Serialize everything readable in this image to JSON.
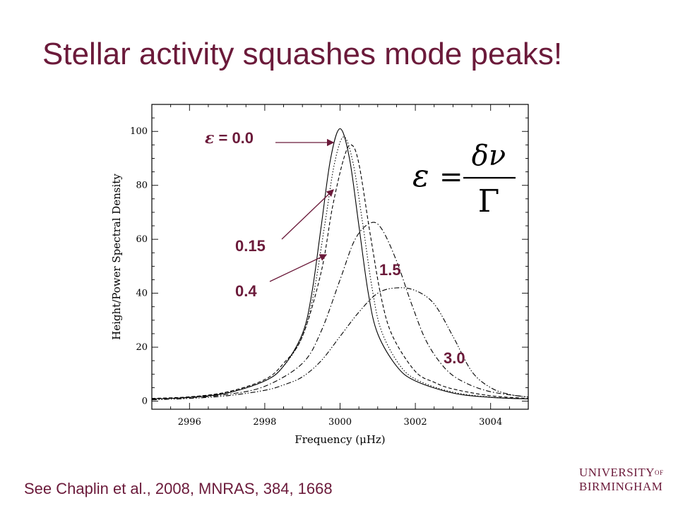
{
  "slide": {
    "title": "Stellar activity squashes mode peaks!",
    "citation": "See Chaplin et al., 2008, MNRAS, 384, 1668",
    "logo_lines": [
      "UNIVERSITY",
      "OF",
      "BIRMINGHAM"
    ],
    "annotations": {
      "eps_symbol": "ε",
      "eps_label": " = 0.0",
      "a015": "0.15",
      "a04": "0.4",
      "a15": "1.5",
      "a30": "3.0"
    },
    "formula": {
      "lhs": "ε",
      "eq": "=",
      "num": "δν",
      "den": "Γ"
    },
    "colors": {
      "accent": "#6b1a3a",
      "plot": "#000000"
    }
  },
  "chart_data": {
    "type": "line",
    "xlabel": "Frequency (μHz)",
    "ylabel": "Height/Power Spectral Density",
    "xlim": [
      2995,
      3005
    ],
    "ylim": [
      -3,
      110
    ],
    "xticks": [
      2996,
      2998,
      3000,
      3002,
      3004
    ],
    "yticks": [
      0,
      20,
      40,
      60,
      80,
      100
    ],
    "grid": false,
    "series": [
      {
        "name": "0.0",
        "style": "solid",
        "x": [
          2995,
          2996,
          2997,
          2998,
          2998.5,
          2999,
          2999.25,
          2999.5,
          2999.75,
          3000,
          3000.25,
          3000.5,
          3000.75,
          3001,
          3001.5,
          3002,
          3003,
          3004,
          3005
        ],
        "y": [
          0.8,
          1.4,
          3,
          7.5,
          13,
          25,
          40,
          65,
          90,
          101,
          90,
          65,
          40,
          25,
          13,
          7.5,
          3,
          1.4,
          0.8
        ]
      },
      {
        "name": "0.15",
        "style": "dotted",
        "x": [
          2995,
          2996,
          2997,
          2998,
          2998.5,
          2999,
          2999.3,
          2999.6,
          2999.85,
          3000.1,
          3000.35,
          3000.6,
          3000.85,
          3001.1,
          3001.6,
          3002.1,
          3003,
          3004,
          3005
        ],
        "y": [
          0.9,
          1.5,
          3.2,
          7.5,
          13,
          24,
          40,
          66,
          88,
          98,
          88,
          66,
          42,
          26,
          13,
          7.5,
          3.3,
          1.5,
          0.9
        ]
      },
      {
        "name": "0.4",
        "style": "dashed",
        "x": [
          2995,
          2996,
          2997,
          2998,
          2998.5,
          2999,
          2999.5,
          2999.8,
          3000.1,
          3000.3,
          3000.5,
          3000.8,
          3001.1,
          3001.4,
          3002,
          3002.5,
          3003,
          3004,
          3005
        ],
        "y": [
          1,
          1.6,
          3.4,
          8,
          14,
          24,
          48,
          72,
          90,
          95,
          88,
          62,
          38,
          24,
          11,
          7,
          4.5,
          2,
          1
        ]
      },
      {
        "name": "1.5",
        "style": "dashdot",
        "x": [
          2995,
          2996,
          2997,
          2998,
          2999,
          2999.5,
          3000,
          3000.4,
          3000.8,
          3001.1,
          3001.5,
          3001.9,
          3002.3,
          3002.8,
          3003.3,
          3004,
          3005
        ],
        "y": [
          0.8,
          1.3,
          2.5,
          5.5,
          14,
          26,
          45,
          60,
          66,
          64,
          52,
          36,
          22,
          12,
          7,
          3.5,
          1.5
        ]
      },
      {
        "name": "3.0",
        "style": "dashdotdot",
        "x": [
          2995,
          2996,
          2997,
          2998,
          2998.5,
          2999,
          2999.5,
          3000,
          3000.5,
          3001,
          3001.5,
          3002,
          3002.5,
          3003,
          3003.5,
          3004,
          3004.5,
          3005
        ],
        "y": [
          0.5,
          1,
          2,
          4,
          6,
          9,
          15,
          24,
          33,
          40,
          42,
          41,
          36,
          24,
          11,
          5,
          2.5,
          1.5
        ]
      }
    ]
  }
}
